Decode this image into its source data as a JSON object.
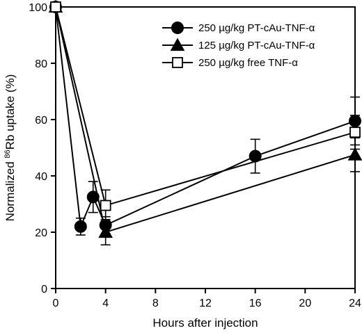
{
  "chart_data": {
    "type": "line",
    "xlabel": "Hours after injection",
    "ylabel_parts": [
      "Normalized ",
      "86",
      "Rb uptake (%)"
    ],
    "xlim": [
      0,
      24
    ],
    "ylim": [
      0,
      100
    ],
    "x_ticks": [
      0,
      4,
      8,
      12,
      16,
      20,
      24
    ],
    "y_ticks": [
      0,
      20,
      40,
      60,
      80,
      100
    ],
    "grid": false,
    "legend_position": "top-right",
    "series": [
      {
        "name": "250 µg/kg PT-cAu-TNF-α",
        "marker": "circle-filled",
        "points": [
          {
            "x": 0,
            "y": 100,
            "err": 0
          },
          {
            "x": 2,
            "y": 22,
            "err": 3
          },
          {
            "x": 3,
            "y": 32.5,
            "err": 5.5
          },
          {
            "x": 4,
            "y": 22.5,
            "err": 3
          },
          {
            "x": 16,
            "y": 47,
            "err": 6
          },
          {
            "x": 24,
            "y": 59.5,
            "err": 8.5
          }
        ]
      },
      {
        "name": "125 µg/kg PT-cAu-TNF-α",
        "marker": "triangle-filled",
        "points": [
          {
            "x": 0,
            "y": 100,
            "err": 0
          },
          {
            "x": 4,
            "y": 20,
            "err": 4.5
          },
          {
            "x": 24,
            "y": 47.5,
            "err": 6
          }
        ]
      },
      {
        "name": "250 µg/kg free TNF-α",
        "marker": "square-open",
        "points": [
          {
            "x": 0,
            "y": 100,
            "err": 0
          },
          {
            "x": 4,
            "y": 29.5,
            "err": 5.5
          },
          {
            "x": 24,
            "y": 55.5,
            "err": 6
          }
        ]
      }
    ]
  }
}
